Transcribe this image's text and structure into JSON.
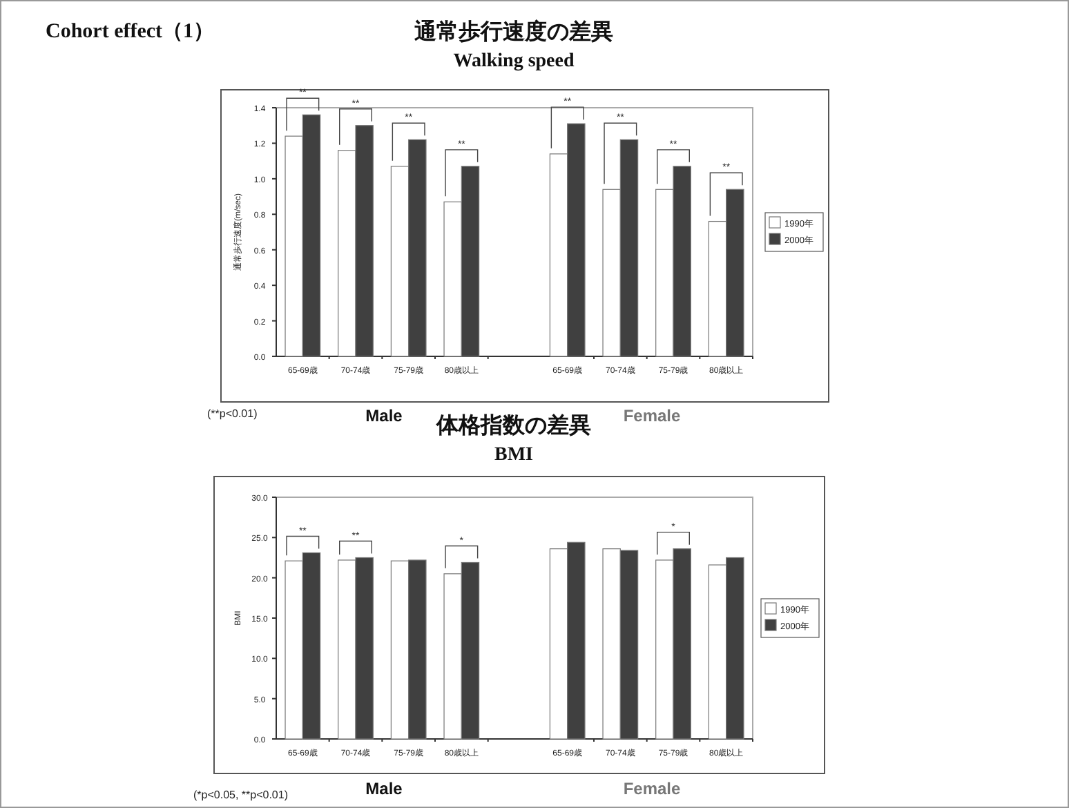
{
  "chart_data": [
    {
      "type": "bar",
      "title": "通常歩行速度の差異",
      "subtitle": "Walking speed",
      "ylabel": "通常歩行速度(m/sec)",
      "categories": [
        "65-69歳",
        "70-74歳",
        "75-79歳",
        "80歳以上",
        null,
        "65-69歳",
        "70-74歳",
        "75-79歳",
        "80歳以上"
      ],
      "series": [
        {
          "name": "1990年",
          "color": "#ffffff",
          "values": [
            1.24,
            1.16,
            1.07,
            0.87,
            null,
            1.14,
            0.94,
            0.94,
            0.76
          ]
        },
        {
          "name": "2000年",
          "color": "#404040",
          "values": [
            1.36,
            1.3,
            1.22,
            1.07,
            null,
            1.31,
            1.22,
            1.07,
            0.94
          ]
        }
      ],
      "ylim": [
        0,
        1.4
      ],
      "yticks": [
        {
          "value": 0,
          "label": "0.0"
        },
        {
          "value": 0.2,
          "label": "0.2"
        },
        {
          "value": 0.4,
          "label": "0.4"
        },
        {
          "value": 0.6,
          "label": "0.6"
        },
        {
          "value": 0.8,
          "label": "0.8"
        },
        {
          "value": 1,
          "label": "1.0"
        },
        {
          "value": 1.2,
          "label": "1.2"
        },
        {
          "value": 1.4,
          "label": "1.4"
        }
      ],
      "legend": "right",
      "annotations": [
        "Cohort effect（1）",
        "(**p<0.01)",
        "Male",
        "Female",
        "**",
        "**",
        "**",
        "**",
        "**",
        "**",
        "**",
        "**"
      ]
    },
    {
      "type": "bar",
      "title": "体格指数の差異",
      "subtitle": "BMI",
      "ylabel": "BMI",
      "categories": [
        "65-69歳",
        "70-74歳",
        "75-79歳",
        "80歳以上",
        null,
        "65-69歳",
        "70-74歳",
        "75-79歳",
        "80歳以上"
      ],
      "series": [
        {
          "name": "1990年",
          "color": "#ffffff",
          "values": [
            22.1,
            22.2,
            22.1,
            20.5,
            null,
            23.6,
            23.6,
            22.2,
            21.6
          ]
        },
        {
          "name": "2000年",
          "color": "#404040",
          "values": [
            23.1,
            22.5,
            22.2,
            21.9,
            null,
            24.4,
            23.4,
            23.6,
            22.5
          ]
        }
      ],
      "ylim": [
        0,
        30
      ],
      "yticks": [
        {
          "value": 0,
          "label": "0.0"
        },
        {
          "value": 5,
          "label": "5.0"
        },
        {
          "value": 10,
          "label": "10.0"
        },
        {
          "value": 15,
          "label": "15.0"
        },
        {
          "value": 20,
          "label": "20.0"
        },
        {
          "value": 25,
          "label": "25.0"
        },
        {
          "value": 30,
          "label": "30.0"
        }
      ],
      "legend": "right",
      "annotations": [
        "(*p<0.05, **p<0.01)",
        "Male",
        "Female",
        "**",
        "**",
        "*",
        "*"
      ]
    }
  ]
}
